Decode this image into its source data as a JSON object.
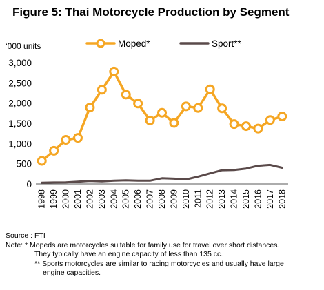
{
  "chart_data": {
    "type": "line",
    "title": "Figure 5: Thai Motorcycle Production by Segment",
    "ylabel": "‘000 units",
    "xlabel": "",
    "ylim": [
      0,
      3000
    ],
    "yticks": [
      0,
      500,
      1000,
      1500,
      2000,
      2500,
      3000
    ],
    "ytick_labels": [
      "0",
      "500",
      "1,000",
      "1,500",
      "2,000",
      "2,500",
      "3,000"
    ],
    "grid": false,
    "legend": "top",
    "categories": [
      "1998",
      "1999",
      "2000",
      "2001",
      "2002",
      "2003",
      "2004",
      "2005",
      "2006",
      "2007",
      "2008",
      "2009",
      "2010",
      "2011",
      "2012",
      "2013",
      "2014",
      "2015",
      "2016",
      "2017",
      "2018"
    ],
    "series": [
      {
        "name": "Moped*",
        "color": "#F5A623",
        "marker": "circle",
        "values": [
          570,
          820,
          1090,
          1140,
          1890,
          2330,
          2780,
          2210,
          1990,
          1570,
          1760,
          1510,
          1920,
          1880,
          2340,
          1870,
          1480,
          1430,
          1370,
          1580,
          1670
        ]
      },
      {
        "name": "Sport**",
        "color": "#5A4A4A",
        "marker": "none",
        "values": [
          30,
          35,
          40,
          55,
          75,
          65,
          80,
          90,
          80,
          80,
          140,
          130,
          110,
          180,
          260,
          340,
          345,
          380,
          450,
          470,
          400
        ]
      }
    ]
  },
  "notes": {
    "source": "Source : FTI",
    "note1": "Note: * Mopeds are motorcycles suitable for family use for travel over short distances.",
    "note1b": "They typically have an engine capacity of less than 135 cc.",
    "note2": "** Sports motorcycles are similar to racing motorcycles and usually have large",
    "note2b": "engine capacities."
  }
}
